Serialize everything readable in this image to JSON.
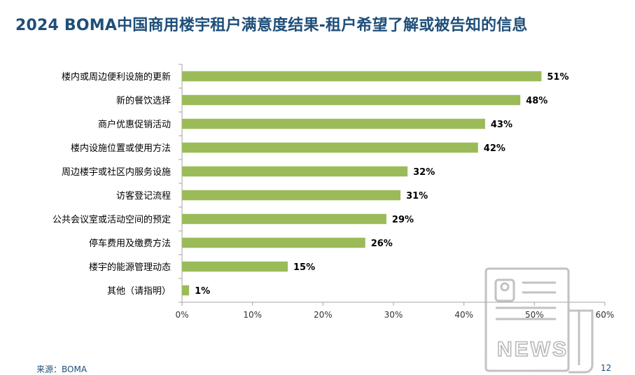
{
  "title": "2024 BOMA中国商用楼宇租户满意度结果-租户希望了解或被告知的信息",
  "source": "来源：BOMA",
  "page_number": "12",
  "watermark_text": "NEWS",
  "colors": {
    "title": "#1f4e79",
    "bar": "#9bbb59",
    "axis": "#a6a6a6",
    "text": "#000000"
  },
  "chart_data": {
    "type": "bar",
    "orientation": "horizontal",
    "categories": [
      "楼内或周边便利设施的更新",
      "新的餐饮选择",
      "商户优惠促销活动",
      "楼内设施位置或使用方法",
      "周边楼宇或社区内服务设施",
      "访客登记流程",
      "公共会议室或活动空间的预定",
      "停车费用及缴费方法",
      "楼宇的能源管理动态",
      "其他（请指明）"
    ],
    "values": [
      51,
      48,
      43,
      42,
      32,
      31,
      29,
      26,
      15,
      1
    ],
    "value_labels": [
      "51%",
      "48%",
      "43%",
      "42%",
      "32%",
      "31%",
      "29%",
      "26%",
      "15%",
      "1%"
    ],
    "xlim": [
      0,
      60
    ],
    "xticks": [
      0,
      10,
      20,
      30,
      40,
      50,
      60
    ],
    "xtick_labels": [
      "0%",
      "10%",
      "20%",
      "30%",
      "40%",
      "50%",
      "60%"
    ],
    "grid": false,
    "legend": "none"
  }
}
